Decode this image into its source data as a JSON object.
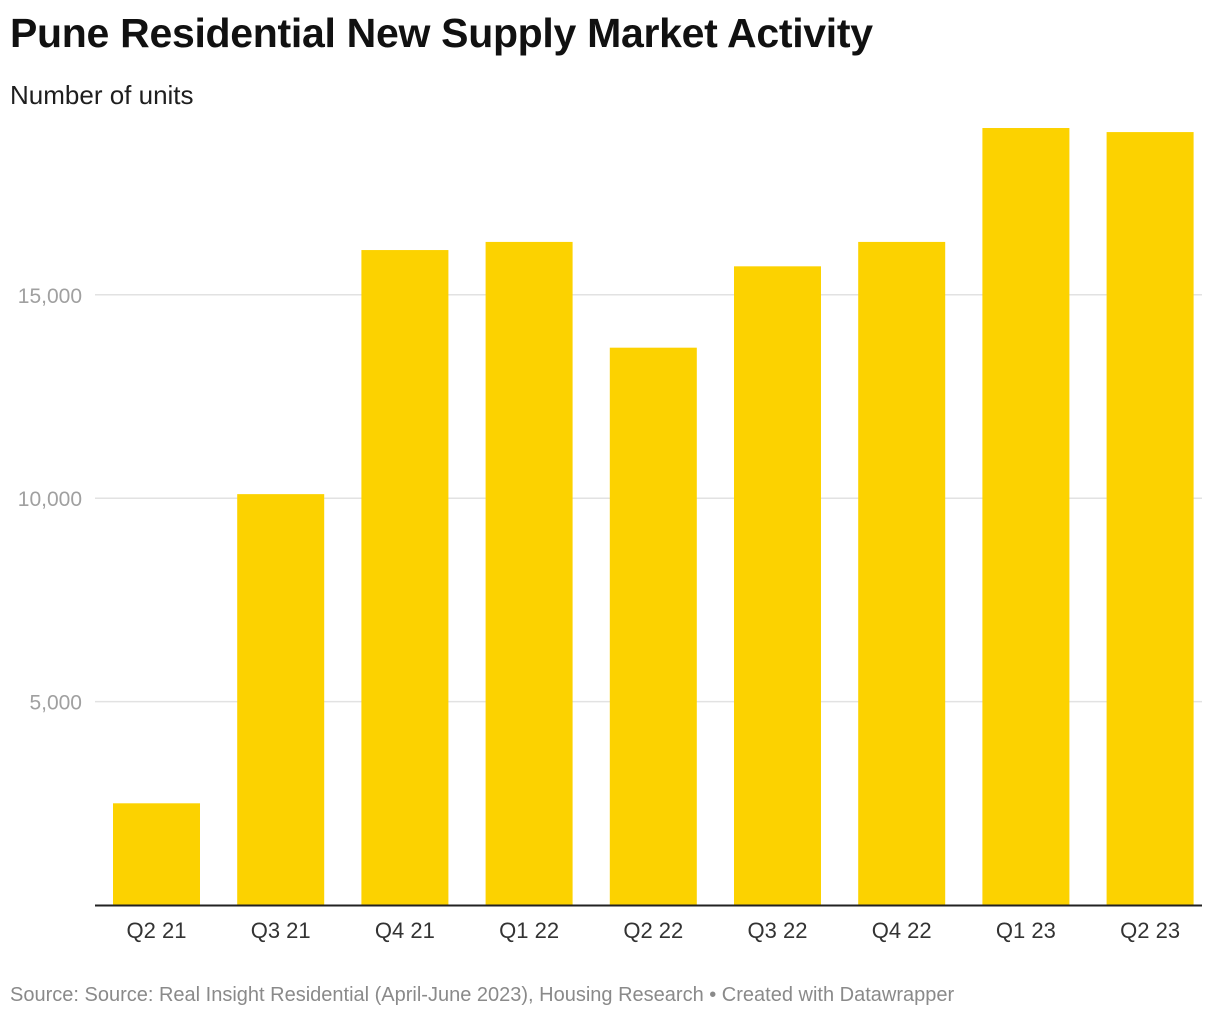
{
  "header": {
    "title": "Pune Residential New Supply Market Activity",
    "subtitle": "Number of units"
  },
  "footer": {
    "source": "Source: Source: Real Insight Residential (April-June 2023), Housing Research • Created with Datawrapper"
  },
  "colors": {
    "bar": "#FCD200",
    "grid": "#e2e2e2",
    "axis": "#222222",
    "tick_label": "#a0a0a0",
    "category_label": "#333333"
  },
  "chart_data": {
    "type": "bar",
    "title": "Pune Residential New Supply Market Activity",
    "ylabel": "Number of units",
    "categories": [
      "Q2 21",
      "Q3 21",
      "Q4 21",
      "Q1 22",
      "Q2 22",
      "Q3 22",
      "Q4 22",
      "Q1 23",
      "Q2 23"
    ],
    "values": [
      2500,
      10100,
      16100,
      16300,
      13700,
      15700,
      16300,
      19100,
      19000
    ],
    "ylim": [
      0,
      20000
    ],
    "yticks": [
      5000,
      10000,
      15000
    ],
    "ytick_labels": [
      "5,000",
      "10,000",
      "15,000"
    ],
    "grid": true,
    "legend": "none"
  }
}
